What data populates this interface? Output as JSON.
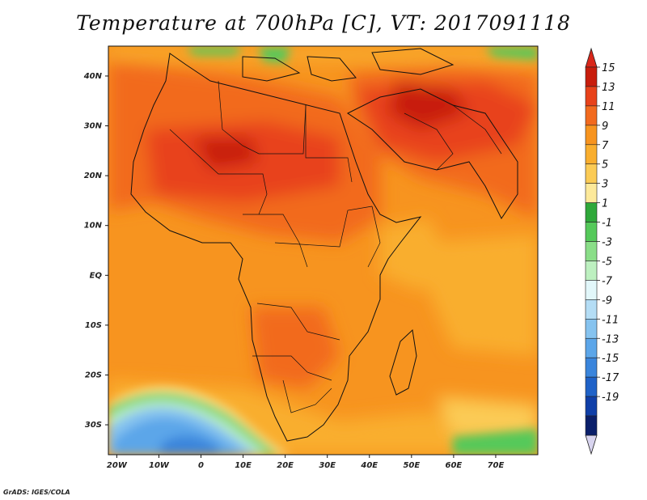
{
  "title": "Temperature at 700hPa [C], VT: 2017091118",
  "credit": "GrADS: IGES/COLA",
  "map": {
    "lon_range": [
      -22,
      80
    ],
    "lat_range": [
      -36,
      46
    ],
    "lat_ticks": [
      {
        "lat": 40,
        "label": "40N"
      },
      {
        "lat": 30,
        "label": "30N"
      },
      {
        "lat": 20,
        "label": "20N"
      },
      {
        "lat": 10,
        "label": "10N"
      },
      {
        "lat": 0,
        "label": "EQ"
      },
      {
        "lat": -10,
        "label": "10S"
      },
      {
        "lat": -20,
        "label": "20S"
      },
      {
        "lat": -30,
        "label": "30S"
      }
    ],
    "lon_ticks": [
      {
        "lon": -20,
        "label": "20W"
      },
      {
        "lon": -10,
        "label": "10W"
      },
      {
        "lon": 0,
        "label": "0"
      },
      {
        "lon": 10,
        "label": "10E"
      },
      {
        "lon": 20,
        "label": "20E"
      },
      {
        "lon": 30,
        "label": "30E"
      },
      {
        "lon": 40,
        "label": "40E"
      },
      {
        "lon": 50,
        "label": "50E"
      },
      {
        "lon": 60,
        "label": "60E"
      },
      {
        "lon": 70,
        "label": "70E"
      }
    ]
  },
  "colorbar": {
    "labels": [
      "15",
      "13",
      "11",
      "9",
      "7",
      "5",
      "3",
      "1",
      "-1",
      "-3",
      "-5",
      "-7",
      "-9",
      "-11",
      "-13",
      "-15",
      "-17",
      "-19"
    ],
    "colors": [
      "#c81d0c",
      "#e8421a",
      "#f26a1e",
      "#f7941f",
      "#f9ae2e",
      "#fbcb55",
      "#fde99a",
      "#2fa83a",
      "#55c95a",
      "#8ade88",
      "#bdf0c0",
      "#e2f7fa",
      "#b4ddf5",
      "#86c3ef",
      "#5ca6e9",
      "#3a85dc",
      "#1f62c8",
      "#0f3fa8",
      "#0a1f6a"
    ],
    "top_color": "#d9271a",
    "bottom_color": "#d8d4ef"
  }
}
